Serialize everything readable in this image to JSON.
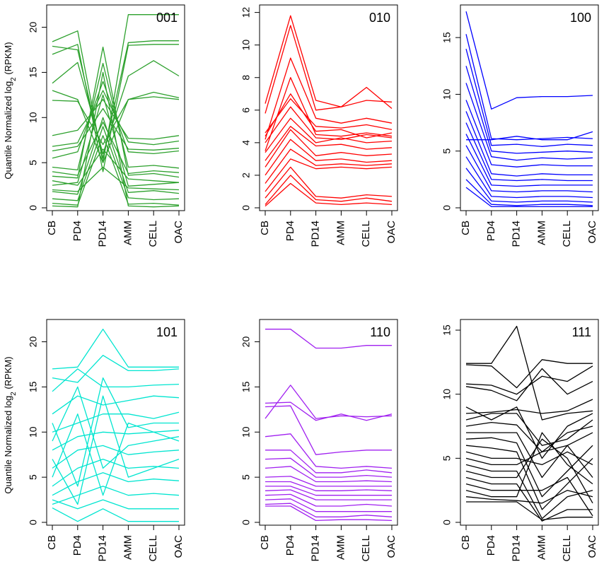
{
  "chart_data": [
    {
      "type": "line",
      "panel_label": "001",
      "color": "#2ca02c",
      "ylim": [
        0,
        22
      ],
      "yticks": [
        0,
        5,
        10,
        15,
        20
      ],
      "ylabel": "Quantile Normalized log",
      "ylabel_sub": "2",
      "ylabel_tail": " (RPKM)",
      "categories": [
        "CB",
        "PD4",
        "PD14",
        "AMM",
        "CELL",
        "OAC"
      ],
      "series": [
        {
          "values": [
            18.4,
            19.6,
            5.0,
            21.4,
            21.4,
            21.4
          ]
        },
        {
          "values": [
            17.9,
            17.5,
            5.5,
            18.3,
            18.5,
            18.5
          ]
        },
        {
          "values": [
            17.0,
            18.1,
            4.0,
            18.0,
            18.1,
            18.1
          ]
        },
        {
          "values": [
            13.8,
            16.1,
            6.0,
            14.6,
            16.3,
            14.6
          ]
        },
        {
          "values": [
            13.0,
            12.0,
            5.0,
            12.0,
            12.8,
            12.2
          ]
        },
        {
          "values": [
            11.9,
            11.8,
            7.0,
            12.0,
            12.3,
            12.0
          ]
        },
        {
          "values": [
            8.0,
            8.6,
            12.0,
            7.7,
            7.6,
            8.0
          ]
        },
        {
          "values": [
            6.8,
            7.2,
            13.0,
            7.3,
            7.0,
            7.4
          ]
        },
        {
          "values": [
            6.3,
            6.8,
            11.0,
            6.5,
            6.4,
            6.6
          ]
        },
        {
          "values": [
            5.5,
            6.2,
            14.0,
            6.2,
            6.0,
            6.3
          ]
        },
        {
          "values": [
            4.5,
            4.2,
            16.0,
            4.5,
            4.7,
            4.4
          ]
        },
        {
          "values": [
            3.5,
            3.3,
            17.8,
            3.6,
            3.8,
            3.4
          ]
        },
        {
          "values": [
            2.5,
            2.8,
            12.5,
            2.4,
            2.6,
            2.8
          ]
        },
        {
          "values": [
            1.8,
            1.5,
            10.0,
            1.7,
            1.9,
            1.6
          ]
        },
        {
          "values": [
            1.0,
            0.8,
            9.0,
            1.1,
            0.9,
            1.0
          ]
        },
        {
          "values": [
            0.5,
            0.3,
            8.0,
            0.4,
            0.5,
            0.3
          ]
        },
        {
          "values": [
            0.2,
            0.1,
            15.0,
            0.2,
            0.1,
            0.2
          ]
        },
        {
          "values": [
            3.0,
            2.5,
            6.5,
            3.2,
            3.0,
            2.8
          ]
        },
        {
          "values": [
            2.0,
            1.8,
            4.5,
            2.2,
            2.1,
            2.0
          ]
        },
        {
          "values": [
            4.0,
            3.6,
            9.5,
            3.8,
            4.1,
            3.9
          ]
        }
      ]
    },
    {
      "type": "line",
      "panel_label": "010",
      "color": "#ff0000",
      "ylim": [
        0,
        12.2
      ],
      "yticks": [
        0,
        2,
        4,
        6,
        8,
        10,
        12
      ],
      "categories": [
        "CB",
        "PD4",
        "PD14",
        "AMM",
        "CELL",
        "OAC"
      ],
      "series": [
        {
          "values": [
            6.4,
            11.8,
            6.6,
            6.2,
            6.6,
            6.5
          ]
        },
        {
          "values": [
            5.8,
            11.2,
            6.0,
            6.2,
            7.4,
            6.1
          ]
        },
        {
          "values": [
            4.2,
            9.2,
            5.5,
            5.2,
            5.5,
            5.2
          ]
        },
        {
          "values": [
            4.4,
            7.0,
            4.7,
            4.8,
            4.3,
            4.6
          ]
        },
        {
          "values": [
            4.0,
            6.2,
            4.3,
            4.2,
            4.5,
            4.3
          ]
        },
        {
          "values": [
            3.4,
            5.5,
            4.0,
            4.3,
            4.0,
            4.1
          ]
        },
        {
          "values": [
            2.9,
            5.0,
            3.8,
            3.9,
            3.6,
            3.7
          ]
        },
        {
          "values": [
            2.5,
            4.8,
            3.2,
            3.4,
            3.2,
            3.3
          ]
        },
        {
          "values": [
            2.0,
            4.2,
            2.9,
            3.0,
            2.8,
            2.9
          ]
        },
        {
          "values": [
            1.5,
            3.6,
            2.6,
            2.7,
            2.6,
            2.7
          ]
        },
        {
          "values": [
            1.0,
            3.0,
            2.4,
            2.5,
            2.4,
            2.5
          ]
        },
        {
          "values": [
            0.6,
            2.5,
            0.7,
            0.6,
            0.8,
            0.7
          ]
        },
        {
          "values": [
            0.2,
            2.0,
            0.5,
            0.4,
            0.6,
            0.4
          ]
        },
        {
          "values": [
            0.1,
            1.5,
            0.3,
            0.2,
            0.3,
            0.2
          ]
        },
        {
          "values": [
            3.5,
            8.0,
            4.5,
            4.4,
            4.6,
            4.4
          ]
        },
        {
          "values": [
            4.6,
            6.7,
            5.0,
            4.9,
            5.1,
            4.8
          ]
        }
      ]
    },
    {
      "type": "line",
      "panel_label": "100",
      "color": "#0000ff",
      "ylim": [
        0,
        17.5
      ],
      "yticks": [
        0,
        5,
        10,
        15
      ],
      "categories": [
        "CB",
        "PD4",
        "PD14",
        "AMM",
        "CELL",
        "OAC"
      ],
      "series": [
        {
          "values": [
            17.3,
            8.7,
            9.7,
            9.8,
            9.8,
            9.9
          ]
        },
        {
          "values": [
            15.3,
            6.1,
            6.0,
            6.1,
            6.2,
            6.1
          ]
        },
        {
          "values": [
            14.0,
            5.5,
            5.6,
            5.4,
            5.6,
            5.5
          ]
        },
        {
          "values": [
            12.5,
            5.0,
            4.8,
            4.9,
            5.0,
            4.9
          ]
        },
        {
          "values": [
            11.0,
            4.5,
            4.2,
            4.4,
            4.3,
            4.4
          ]
        },
        {
          "values": [
            9.5,
            3.8,
            3.6,
            3.8,
            3.7,
            3.7
          ]
        },
        {
          "values": [
            8.5,
            3.0,
            2.8,
            3.0,
            2.9,
            2.9
          ]
        },
        {
          "values": [
            7.5,
            2.5,
            2.4,
            2.5,
            2.4,
            2.4
          ]
        },
        {
          "values": [
            6.5,
            2.0,
            1.9,
            2.0,
            2.0,
            2.0
          ]
        },
        {
          "values": [
            5.5,
            1.5,
            1.4,
            1.5,
            1.5,
            1.4
          ]
        },
        {
          "values": [
            4.5,
            1.0,
            0.9,
            1.0,
            1.0,
            0.9
          ]
        },
        {
          "values": [
            3.5,
            0.6,
            0.5,
            0.6,
            0.6,
            0.5
          ]
        },
        {
          "values": [
            2.5,
            0.3,
            0.2,
            0.3,
            0.3,
            0.2
          ]
        },
        {
          "values": [
            1.8,
            0.1,
            0.1,
            0.1,
            0.1,
            0.1
          ]
        },
        {
          "values": [
            6.0,
            6.0,
            6.3,
            6.0,
            6.0,
            6.7
          ]
        }
      ]
    },
    {
      "type": "line",
      "panel_label": "101",
      "color": "#00e5d0",
      "ylim": [
        0,
        22
      ],
      "yticks": [
        0,
        5,
        10,
        15,
        20
      ],
      "ylabel": "Quantile Normalized log",
      "ylabel_sub": "2",
      "ylabel_tail": " (RPKM)",
      "categories": [
        "CB",
        "PD4",
        "PD14",
        "AMM",
        "CELL",
        "OAC"
      ],
      "series": [
        {
          "values": [
            17.0,
            17.2,
            21.4,
            17.2,
            17.2,
            17.2
          ]
        },
        {
          "values": [
            16.0,
            15.5,
            18.5,
            16.8,
            16.8,
            17.0
          ]
        },
        {
          "values": [
            14.5,
            17.0,
            15.0,
            15.0,
            15.2,
            15.3
          ]
        },
        {
          "values": [
            12.0,
            14.0,
            13.0,
            13.5,
            14.0,
            13.8
          ]
        },
        {
          "values": [
            10.0,
            11.0,
            12.0,
            12.0,
            11.5,
            12.2
          ]
        },
        {
          "values": [
            8.0,
            9.5,
            10.0,
            9.8,
            10.0,
            10.2
          ]
        },
        {
          "values": [
            6.0,
            8.0,
            8.5,
            7.5,
            7.8,
            8.0
          ]
        },
        {
          "values": [
            4.0,
            6.0,
            7.0,
            6.0,
            6.2,
            6.0
          ]
        },
        {
          "values": [
            3.0,
            4.5,
            5.5,
            4.5,
            4.8,
            4.6
          ]
        },
        {
          "values": [
            2.0,
            3.0,
            4.0,
            3.0,
            3.2,
            3.0
          ]
        },
        {
          "values": [
            1.6,
            0.1,
            1.5,
            0.1,
            0.1,
            0.1
          ]
        },
        {
          "values": [
            2.5,
            1.5,
            2.5,
            1.5,
            1.5,
            1.5
          ]
        },
        {
          "values": [
            5.0,
            12.0,
            3.0,
            11.0,
            10.0,
            9.0
          ]
        },
        {
          "values": [
            7.0,
            2.0,
            14.0,
            5.0,
            6.0,
            7.0
          ]
        },
        {
          "values": [
            9.0,
            15.0,
            6.0,
            8.5,
            9.0,
            9.5
          ]
        },
        {
          "values": [
            11.0,
            4.0,
            16.0,
            10.5,
            11.0,
            11.0
          ]
        }
      ]
    },
    {
      "type": "line",
      "panel_label": "110",
      "color": "#a020f0",
      "ylim": [
        0,
        22
      ],
      "yticks": [
        0,
        5,
        10,
        15,
        20
      ],
      "categories": [
        "CB",
        "PD4",
        "PD14",
        "AMM",
        "CELL",
        "OAC"
      ],
      "series": [
        {
          "values": [
            21.4,
            21.4,
            19.3,
            19.3,
            19.6,
            19.6
          ]
        },
        {
          "values": [
            11.5,
            15.2,
            11.5,
            11.8,
            11.7,
            11.8
          ]
        },
        {
          "values": [
            13.2,
            13.3,
            11.3,
            12.0,
            11.3,
            12.0
          ]
        },
        {
          "values": [
            12.8,
            12.9,
            7.5,
            7.8,
            8.0,
            8.0
          ]
        },
        {
          "values": [
            9.5,
            9.8,
            6.2,
            6.0,
            6.2,
            6.0
          ]
        },
        {
          "values": [
            8.0,
            8.0,
            5.5,
            5.5,
            5.8,
            5.5
          ]
        },
        {
          "values": [
            7.0,
            7.1,
            5.0,
            5.0,
            5.2,
            5.0
          ]
        },
        {
          "values": [
            6.0,
            6.2,
            4.5,
            4.5,
            4.6,
            4.5
          ]
        },
        {
          "values": [
            5.0,
            5.1,
            4.0,
            4.0,
            4.0,
            4.0
          ]
        },
        {
          "values": [
            4.5,
            4.5,
            3.5,
            3.5,
            3.6,
            3.5
          ]
        },
        {
          "values": [
            4.0,
            4.0,
            3.0,
            3.0,
            3.0,
            3.0
          ]
        },
        {
          "values": [
            3.5,
            3.6,
            2.5,
            2.5,
            2.5,
            2.5
          ]
        },
        {
          "values": [
            3.0,
            3.1,
            1.8,
            1.8,
            2.0,
            1.8
          ]
        },
        {
          "values": [
            2.5,
            2.6,
            1.2,
            1.2,
            1.2,
            1.2
          ]
        },
        {
          "values": [
            2.0,
            2.1,
            0.6,
            0.6,
            0.8,
            0.6
          ]
        },
        {
          "values": [
            1.8,
            1.8,
            0.2,
            0.3,
            0.3,
            0.2
          ]
        }
      ]
    },
    {
      "type": "line",
      "panel_label": "111",
      "color": "#000000",
      "ylim": [
        0,
        15.5
      ],
      "yticks": [
        0,
        5,
        10,
        15
      ],
      "categories": [
        "CB",
        "PD4",
        "PD14",
        "AMM",
        "CELL",
        "OAC"
      ],
      "series": [
        {
          "values": [
            12.4,
            12.4,
            15.3,
            8.0,
            8.5,
            8.7
          ]
        },
        {
          "values": [
            12.3,
            12.2,
            10.5,
            12.7,
            12.4,
            12.4
          ]
        },
        {
          "values": [
            10.8,
            10.7,
            10.0,
            11.4,
            11.0,
            12.2
          ]
        },
        {
          "values": [
            10.6,
            10.3,
            9.5,
            12.0,
            10.0,
            11.0
          ]
        },
        {
          "values": [
            8.5,
            8.6,
            8.8,
            8.5,
            8.7,
            9.6
          ]
        },
        {
          "values": [
            8.0,
            8.5,
            8.5,
            6.0,
            6.5,
            8.0
          ]
        },
        {
          "values": [
            7.5,
            7.8,
            7.6,
            5.5,
            7.0,
            7.5
          ]
        },
        {
          "values": [
            7.0,
            7.0,
            7.0,
            3.5,
            6.0,
            7.0
          ]
        },
        {
          "values": [
            6.5,
            6.6,
            6.2,
            2.0,
            4.0,
            6.0
          ]
        },
        {
          "values": [
            6.0,
            5.8,
            5.5,
            1.0,
            3.0,
            5.0
          ]
        },
        {
          "values": [
            5.5,
            5.0,
            5.0,
            4.5,
            5.5,
            4.5
          ]
        },
        {
          "values": [
            5.0,
            4.5,
            4.5,
            5.5,
            6.0,
            3.5
          ]
        },
        {
          "values": [
            4.5,
            4.0,
            4.0,
            0.3,
            2.0,
            2.5
          ]
        },
        {
          "values": [
            4.0,
            3.5,
            3.5,
            6.5,
            5.0,
            1.5
          ]
        },
        {
          "values": [
            3.5,
            3.0,
            3.0,
            0.1,
            1.0,
            1.0
          ]
        },
        {
          "values": [
            3.0,
            2.5,
            2.5,
            2.5,
            3.5,
            0.5
          ]
        },
        {
          "values": [
            2.5,
            2.0,
            2.0,
            7.0,
            4.5,
            3.0
          ]
        },
        {
          "values": [
            2.0,
            1.8,
            1.7,
            1.5,
            2.5,
            2.0
          ]
        },
        {
          "values": [
            1.6,
            1.6,
            1.6,
            0.2,
            0.4,
            0.4
          ]
        },
        {
          "values": [
            9.0,
            8.0,
            9.0,
            5.0,
            7.5,
            8.5
          ]
        }
      ]
    }
  ]
}
